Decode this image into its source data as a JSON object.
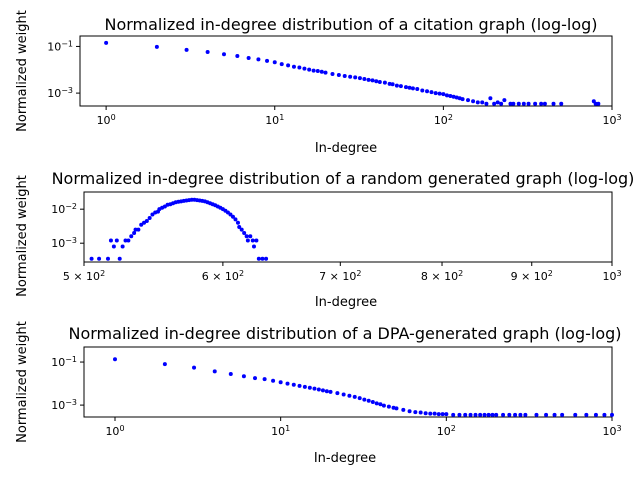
{
  "chart_data": [
    {
      "type": "scatter",
      "title": "Normalized in-degree distribution of a citation graph (log-log)",
      "xlabel": "In-degree",
      "ylabel": "Normalized weight",
      "xscale": "log",
      "yscale": "log",
      "xlim": [
        0.7,
        1000
      ],
      "ylim": [
        0.00028,
        0.28
      ],
      "xticks": [
        {
          "value": 1,
          "label": "10",
          "exp": "0"
        },
        {
          "value": 10,
          "label": "10",
          "exp": "1"
        },
        {
          "value": 100,
          "label": "10",
          "exp": "2"
        },
        {
          "value": 1000,
          "label": "10",
          "exp": "3"
        }
      ],
      "yticks": [
        {
          "value": 0.1,
          "label": "10",
          "exp": "−1"
        },
        {
          "value": 0.001,
          "label": "10",
          "exp": "−3"
        }
      ],
      "grid": false,
      "marker_color": "#0000ff",
      "points": [
        [
          1,
          0.142
        ],
        [
          2,
          0.096
        ],
        [
          3,
          0.071
        ],
        [
          4,
          0.058
        ],
        [
          5,
          0.046
        ],
        [
          6,
          0.039
        ],
        [
          7,
          0.032
        ],
        [
          8,
          0.028
        ],
        [
          9,
          0.024
        ],
        [
          10,
          0.021
        ],
        [
          11,
          0.0175
        ],
        [
          12,
          0.0155
        ],
        [
          13,
          0.0135
        ],
        [
          14,
          0.0125
        ],
        [
          15,
          0.0112
        ],
        [
          16,
          0.0102
        ],
        [
          17,
          0.0092
        ],
        [
          18,
          0.0089
        ],
        [
          19,
          0.0082
        ],
        [
          20,
          0.0075
        ],
        [
          22,
          0.0066
        ],
        [
          24,
          0.006
        ],
        [
          26,
          0.0054
        ],
        [
          28,
          0.005
        ],
        [
          30,
          0.0047
        ],
        [
          32,
          0.0044
        ],
        [
          34,
          0.004
        ],
        [
          36,
          0.0037
        ],
        [
          38,
          0.0035
        ],
        [
          40,
          0.0032
        ],
        [
          42,
          0.003
        ],
        [
          45,
          0.0028
        ],
        [
          48,
          0.0025
        ],
        [
          50,
          0.0024
        ],
        [
          53,
          0.0021
        ],
        [
          56,
          0.002
        ],
        [
          60,
          0.0018
        ],
        [
          63,
          0.0017
        ],
        [
          66,
          0.0016
        ],
        [
          70,
          0.0015
        ],
        [
          75,
          0.0013
        ],
        [
          80,
          0.0012
        ],
        [
          85,
          0.0011
        ],
        [
          90,
          0.001
        ],
        [
          95,
          0.00095
        ],
        [
          100,
          0.0009
        ],
        [
          105,
          0.0008
        ],
        [
          110,
          0.00075
        ],
        [
          115,
          0.0007
        ],
        [
          120,
          0.00065
        ],
        [
          125,
          0.0006
        ],
        [
          130,
          0.00055
        ],
        [
          140,
          0.0005
        ],
        [
          150,
          0.00045
        ],
        [
          160,
          0.0004
        ],
        [
          170,
          0.0004
        ],
        [
          180,
          0.00035
        ],
        [
          190,
          0.0006
        ],
        [
          200,
          0.00035
        ],
        [
          210,
          0.0004
        ],
        [
          220,
          0.00035
        ],
        [
          230,
          0.0005
        ],
        [
          250,
          0.00035
        ],
        [
          260,
          0.00035
        ],
        [
          280,
          0.00035
        ],
        [
          300,
          0.00035
        ],
        [
          320,
          0.00035
        ],
        [
          350,
          0.00035
        ],
        [
          380,
          0.00035
        ],
        [
          400,
          0.00035
        ],
        [
          450,
          0.00035
        ],
        [
          500,
          0.00035
        ],
        [
          780,
          0.00045
        ],
        [
          800,
          0.00035
        ],
        [
          830,
          0.00035
        ]
      ]
    },
    {
      "type": "scatter",
      "title": "Normalized in-degree distribution of a random generated graph (log-log)",
      "xlabel": "In-degree",
      "ylabel": "Normalized weight",
      "xscale": "log",
      "yscale": "log",
      "xlim": [
        500,
        1000
      ],
      "ylim": [
        0.00028,
        0.032
      ],
      "xticks": [
        {
          "value": 500,
          "label": "5 × 10",
          "exp": "2"
        },
        {
          "value": 600,
          "label": "6 × 10",
          "exp": "2"
        },
        {
          "value": 700,
          "label": "7 × 10",
          "exp": "2"
        },
        {
          "value": 800,
          "label": "8 × 10",
          "exp": "2"
        },
        {
          "value": 900,
          "label": "9 × 10",
          "exp": "2"
        },
        {
          "value": 1000,
          "label": "10",
          "exp": "3"
        }
      ],
      "yticks": [
        {
          "value": 0.01,
          "label": "10",
          "exp": "−2"
        },
        {
          "value": 0.001,
          "label": "10",
          "exp": "−3"
        }
      ],
      "grid": false,
      "marker_color": "#0000ff",
      "points": [
        [
          505,
          0.00035
        ],
        [
          510,
          0.00035
        ],
        [
          516,
          0.00035
        ],
        [
          518,
          0.0012
        ],
        [
          520,
          0.0008
        ],
        [
          522,
          0.0012
        ],
        [
          524,
          0.00035
        ],
        [
          526,
          0.0008
        ],
        [
          528,
          0.0012
        ],
        [
          530,
          0.0012
        ],
        [
          532,
          0.0016
        ],
        [
          534,
          0.002
        ],
        [
          535,
          0.0025
        ],
        [
          537,
          0.0025
        ],
        [
          539,
          0.0035
        ],
        [
          541,
          0.004
        ],
        [
          543,
          0.0045
        ],
        [
          545,
          0.0055
        ],
        [
          547,
          0.007
        ],
        [
          549,
          0.008
        ],
        [
          551,
          0.0085
        ],
        [
          552,
          0.01
        ],
        [
          554,
          0.011
        ],
        [
          556,
          0.012
        ],
        [
          558,
          0.0135
        ],
        [
          560,
          0.014
        ],
        [
          562,
          0.015
        ],
        [
          564,
          0.016
        ],
        [
          566,
          0.0165
        ],
        [
          568,
          0.017
        ],
        [
          570,
          0.0175
        ],
        [
          572,
          0.018
        ],
        [
          574,
          0.0185
        ],
        [
          576,
          0.019
        ],
        [
          578,
          0.019
        ],
        [
          580,
          0.0185
        ],
        [
          582,
          0.018
        ],
        [
          584,
          0.0175
        ],
        [
          586,
          0.017
        ],
        [
          588,
          0.016
        ],
        [
          590,
          0.015
        ],
        [
          592,
          0.014
        ],
        [
          594,
          0.013
        ],
        [
          596,
          0.012
        ],
        [
          598,
          0.011
        ],
        [
          600,
          0.01
        ],
        [
          602,
          0.009
        ],
        [
          604,
          0.008
        ],
        [
          606,
          0.007
        ],
        [
          608,
          0.006
        ],
        [
          610,
          0.005
        ],
        [
          612,
          0.004
        ],
        [
          613,
          0.003
        ],
        [
          615,
          0.0025
        ],
        [
          617,
          0.002
        ],
        [
          619,
          0.0016
        ],
        [
          620,
          0.0012
        ],
        [
          622,
          0.0016
        ],
        [
          624,
          0.0012
        ],
        [
          625,
          0.0008
        ],
        [
          627,
          0.0012
        ],
        [
          629,
          0.00035
        ],
        [
          632,
          0.00035
        ],
        [
          635,
          0.00035
        ]
      ]
    },
    {
      "type": "scatter",
      "title": "Normalized in-degree distribution of a DPA-generated graph (log-log)",
      "xlabel": "In-degree",
      "ylabel": "Normalized weight",
      "xscale": "log",
      "yscale": "log",
      "xlim": [
        0.65,
        1000
      ],
      "ylim": [
        0.00028,
        0.5
      ],
      "xticks": [
        {
          "value": 1,
          "label": "10",
          "exp": "0"
        },
        {
          "value": 10,
          "label": "10",
          "exp": "1"
        },
        {
          "value": 100,
          "label": "10",
          "exp": "2"
        },
        {
          "value": 1000,
          "label": "10",
          "exp": "3"
        }
      ],
      "yticks": [
        {
          "value": 0.1,
          "label": "10",
          "exp": "−1"
        },
        {
          "value": 0.001,
          "label": "10",
          "exp": "−3"
        }
      ],
      "grid": false,
      "marker_color": "#0000ff",
      "points": [
        [
          1,
          0.135
        ],
        [
          2,
          0.08
        ],
        [
          3,
          0.055
        ],
        [
          4,
          0.037
        ],
        [
          5,
          0.028
        ],
        [
          6,
          0.022
        ],
        [
          7,
          0.018
        ],
        [
          8,
          0.016
        ],
        [
          9,
          0.0135
        ],
        [
          10,
          0.0115
        ],
        [
          11,
          0.01
        ],
        [
          12,
          0.0088
        ],
        [
          13,
          0.0078
        ],
        [
          14,
          0.007
        ],
        [
          15,
          0.0064
        ],
        [
          16,
          0.0058
        ],
        [
          17,
          0.0053
        ],
        [
          18,
          0.0048
        ],
        [
          19,
          0.0044
        ],
        [
          20,
          0.0041
        ],
        [
          22,
          0.0036
        ],
        [
          24,
          0.0031
        ],
        [
          26,
          0.0027
        ],
        [
          28,
          0.0024
        ],
        [
          30,
          0.0021
        ],
        [
          32,
          0.0018
        ],
        [
          34,
          0.0016
        ],
        [
          36,
          0.0014
        ],
        [
          38,
          0.0012
        ],
        [
          40,
          0.0011
        ],
        [
          42,
          0.00095
        ],
        [
          45,
          0.00085
        ],
        [
          48,
          0.00075
        ],
        [
          50,
          0.0007
        ],
        [
          55,
          0.0006
        ],
        [
          60,
          0.00052
        ],
        [
          65,
          0.00047
        ],
        [
          70,
          0.00045
        ],
        [
          75,
          0.00042
        ],
        [
          80,
          0.0004
        ],
        [
          85,
          0.0004
        ],
        [
          90,
          0.00038
        ],
        [
          95,
          0.00038
        ],
        [
          100,
          0.00038
        ],
        [
          110,
          0.00035
        ],
        [
          120,
          0.00035
        ],
        [
          130,
          0.00035
        ],
        [
          140,
          0.00035
        ],
        [
          150,
          0.00035
        ],
        [
          160,
          0.00035
        ],
        [
          170,
          0.00035
        ],
        [
          180,
          0.00035
        ],
        [
          190,
          0.00035
        ],
        [
          200,
          0.00035
        ],
        [
          220,
          0.00035
        ],
        [
          240,
          0.00035
        ],
        [
          260,
          0.00035
        ],
        [
          280,
          0.00035
        ],
        [
          300,
          0.00035
        ],
        [
          350,
          0.00035
        ],
        [
          400,
          0.00035
        ],
        [
          450,
          0.00035
        ],
        [
          500,
          0.00035
        ],
        [
          600,
          0.00035
        ],
        [
          700,
          0.00035
        ],
        [
          800,
          0.00035
        ],
        [
          900,
          0.00035
        ],
        [
          1000,
          0.00035
        ]
      ]
    }
  ]
}
